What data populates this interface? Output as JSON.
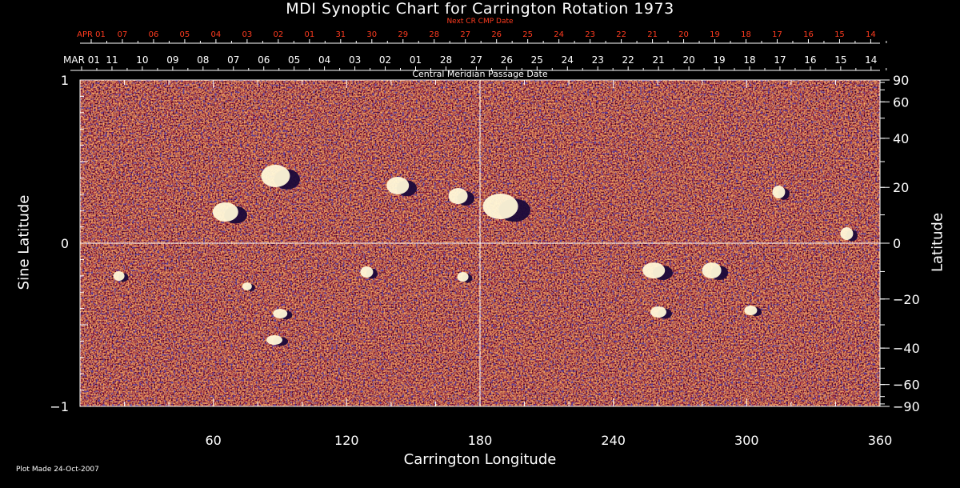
{
  "title": "MDI Synoptic Chart for Carrington Rotation 1973",
  "next_cr_label": "Next CR CMP Date",
  "next_cr_ticks": [
    "APR 01",
    "07",
    "06",
    "05",
    "04",
    "03",
    "02",
    "01",
    "31",
    "30",
    "29",
    "28",
    "27",
    "26",
    "25",
    "24",
    "23",
    "22",
    "21",
    "20",
    "19",
    "18",
    "17",
    "16",
    "15",
    "14"
  ],
  "cmp_ticks": [
    "MAR 01",
    "11",
    "10",
    "09",
    "08",
    "07",
    "06",
    "05",
    "04",
    "03",
    "02",
    "01",
    "28",
    "27",
    "26",
    "25",
    "24",
    "23",
    "22",
    "21",
    "20",
    "19",
    "18",
    "17",
    "16",
    "15",
    "14"
  ],
  "cmp_label": "Central Meridian Passage Date",
  "x_axis": {
    "label": "Carrington Longitude",
    "ticks": [
      "60",
      "120",
      "180",
      "240",
      "300",
      "360"
    ]
  },
  "y_left": {
    "label": "Sine Latitude",
    "ticks": [
      "1",
      "0",
      "−1"
    ]
  },
  "y_right": {
    "label": "Latitude",
    "ticks": [
      "90",
      "60",
      "40",
      "20",
      "0",
      "−20",
      "−40",
      "−60",
      "−90"
    ]
  },
  "footer": "Plot Made 24-Oct-2007",
  "colors": {
    "background": "#000000",
    "accent": "#ff3b1f",
    "map_base": "#d04a10"
  }
}
